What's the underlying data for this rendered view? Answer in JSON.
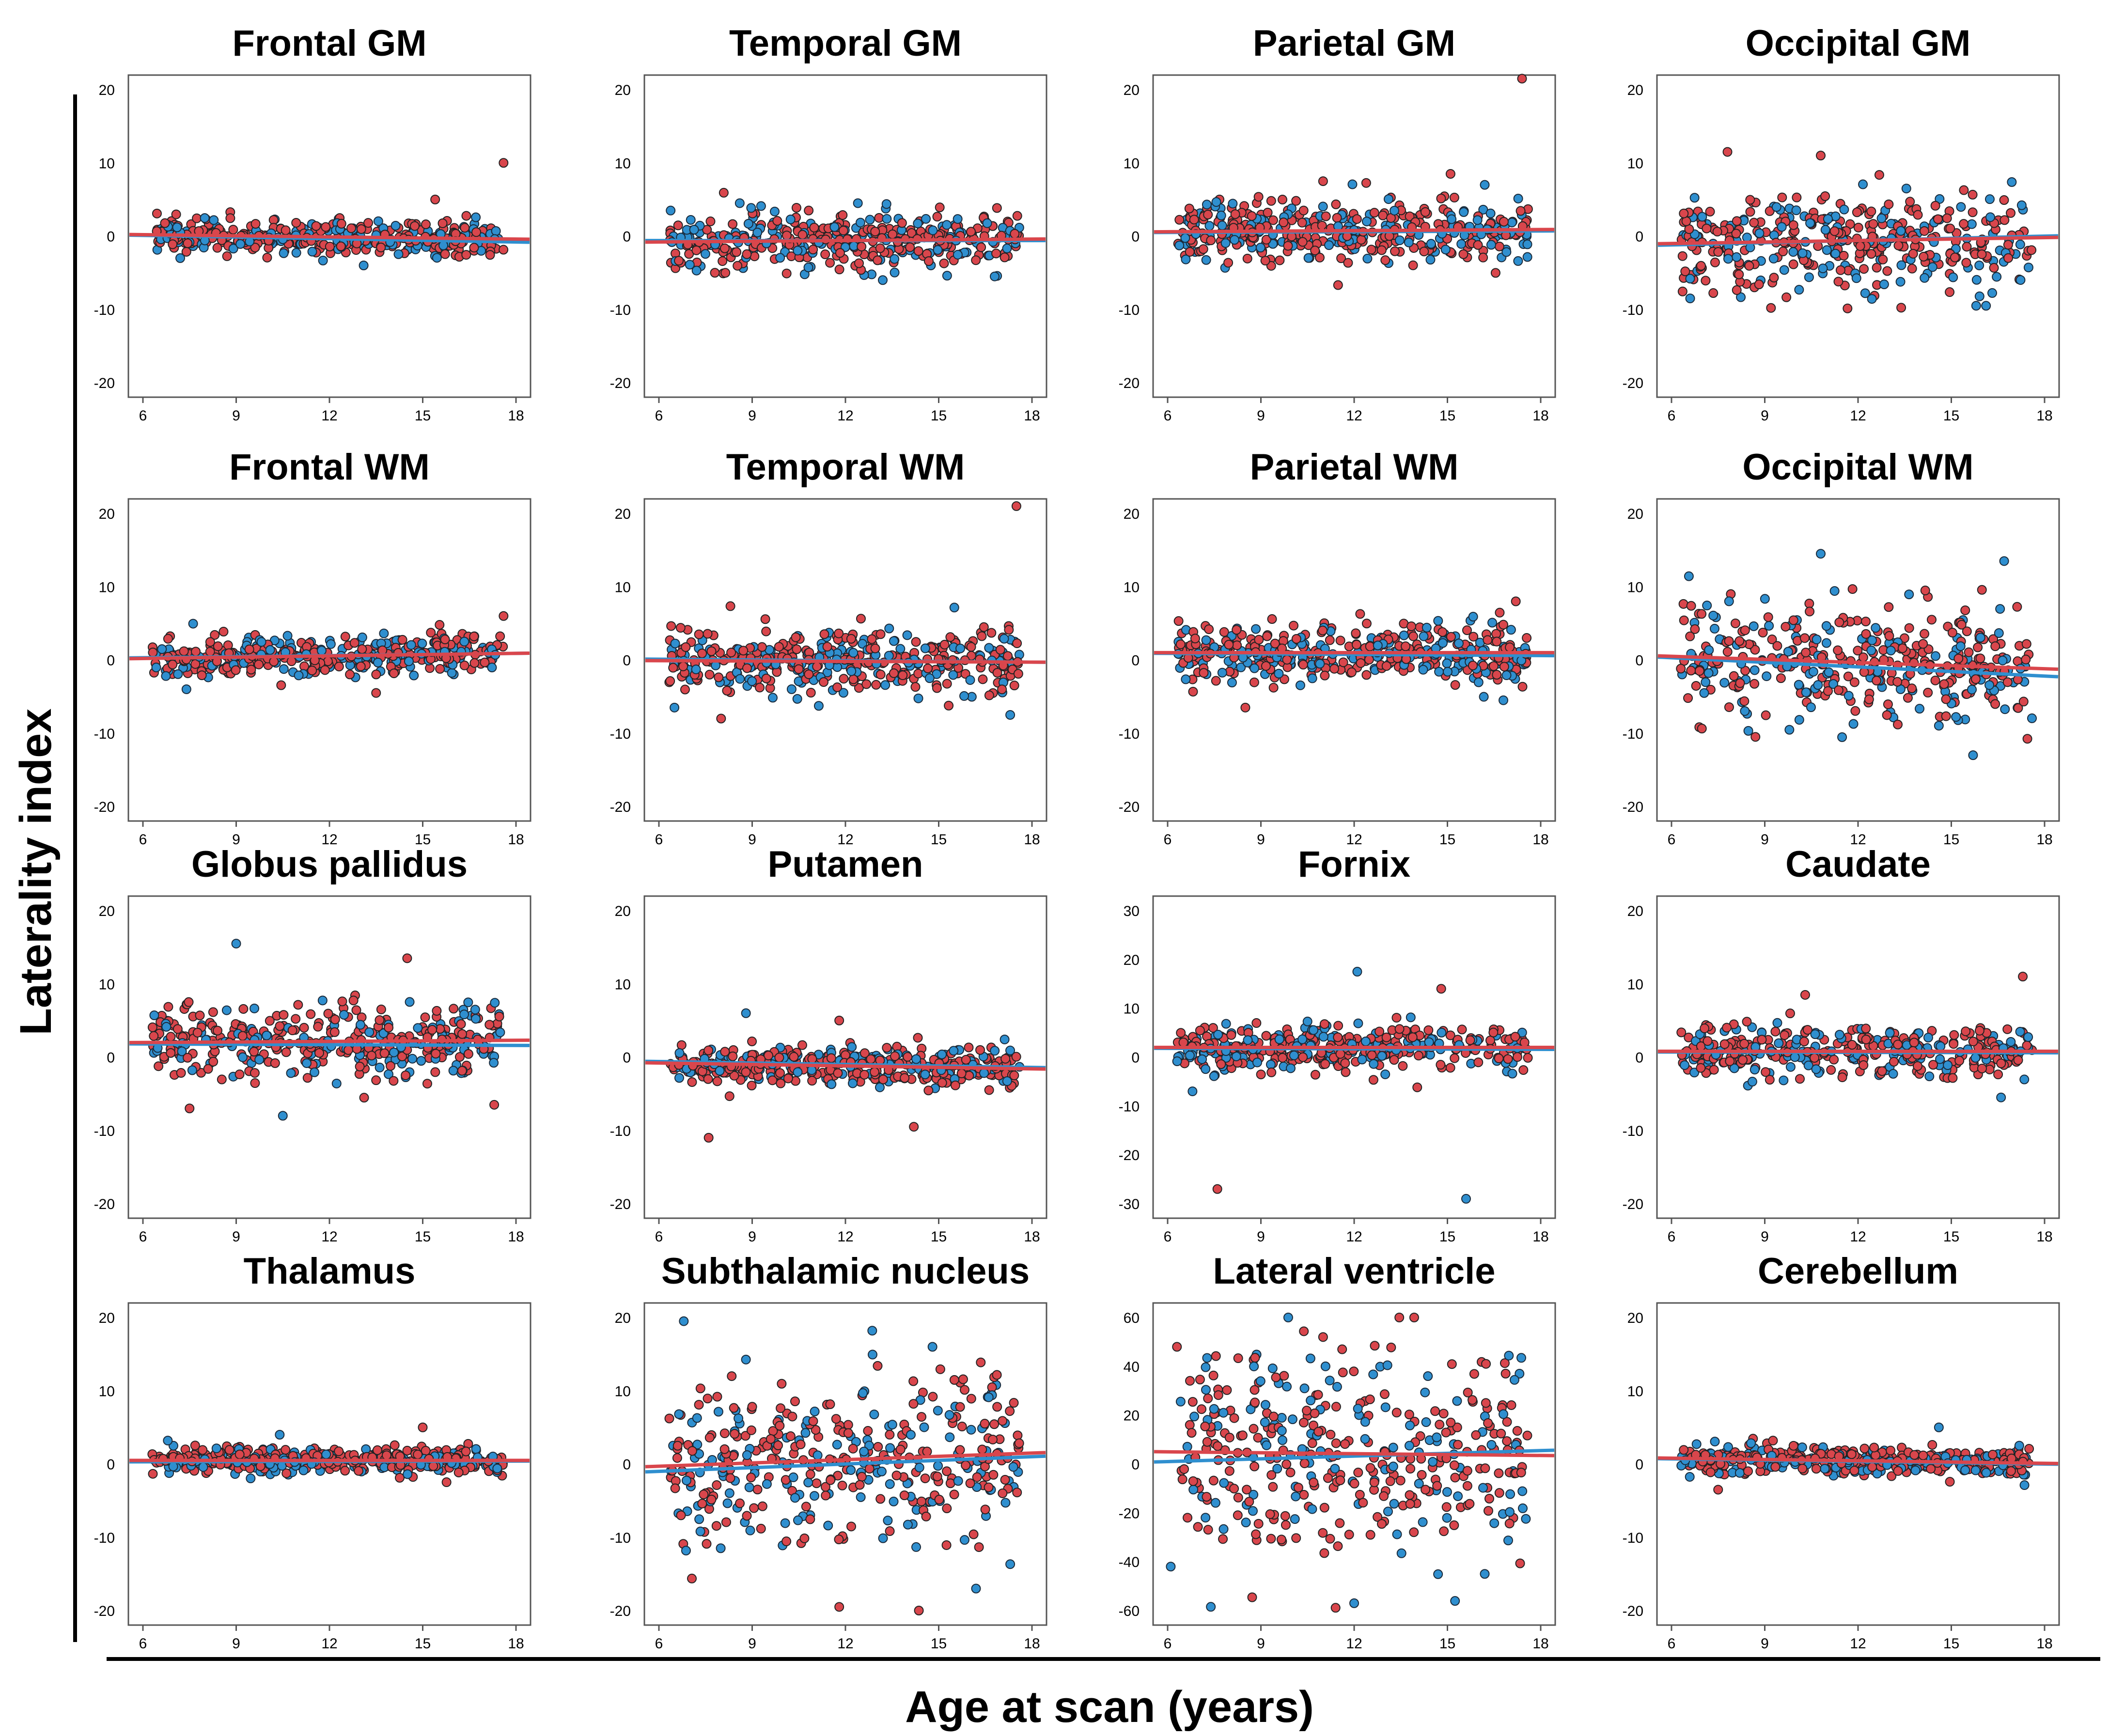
{
  "figure": {
    "ylabel": "Laterality index",
    "xlabel": "Age at scan (years)",
    "colors": {
      "series_a": "#d9464c",
      "series_b": "#2f8fcf",
      "frame": "#444444"
    }
  },
  "chart_data": [
    {
      "type": "scatter",
      "title": "Frontal GM",
      "ylim": [
        -20,
        20
      ],
      "yticks": [
        -20,
        -10,
        0,
        10,
        20
      ],
      "xlim": [
        6,
        18
      ],
      "xticks": [
        6,
        9,
        12,
        15,
        18
      ],
      "spread": 1.2,
      "red_fit": [
        0.2,
        -0.4
      ],
      "blue_fit": [
        0.1,
        -0.8
      ],
      "outliers": [
        [
          17.6,
          10,
          "r"
        ],
        [
          15.4,
          5,
          "r"
        ],
        [
          13.1,
          -4,
          "b"
        ],
        [
          7.2,
          -3,
          "b"
        ]
      ]
    },
    {
      "type": "scatter",
      "title": "Temporal GM",
      "ylim": [
        -20,
        20
      ],
      "yticks": [
        -20,
        -10,
        0,
        10,
        20
      ],
      "xlim": [
        6,
        18
      ],
      "xticks": [
        6,
        9,
        12,
        15,
        18
      ],
      "spread": 2.0,
      "red_fit": [
        -0.8,
        -0.4
      ],
      "blue_fit": [
        -0.6,
        -0.6
      ],
      "outliers": [
        [
          12.4,
          4.5,
          "b"
        ],
        [
          8.6,
          4.5,
          "b"
        ],
        [
          13.2,
          -6,
          "b"
        ],
        [
          16.8,
          -5.5,
          "b"
        ],
        [
          7.8,
          -5,
          "r"
        ]
      ]
    },
    {
      "type": "scatter",
      "title": "Parietal GM",
      "ylim": [
        -20,
        20
      ],
      "yticks": [
        -20,
        -10,
        0,
        10,
        20
      ],
      "xlim": [
        6,
        18
      ],
      "xticks": [
        6,
        9,
        12,
        15,
        18
      ],
      "spread": 2.2,
      "red_fit": [
        0.6,
        0.9
      ],
      "blue_fit": [
        0.5,
        0.7
      ],
      "outliers": [
        [
          17.4,
          21.5,
          "r"
        ],
        [
          15.1,
          8.5,
          "r"
        ],
        [
          16.2,
          7,
          "b"
        ],
        [
          11,
          7.5,
          "r"
        ]
      ]
    },
    {
      "type": "scatter",
      "title": "Occipital GM",
      "ylim": [
        -20,
        20
      ],
      "yticks": [
        -20,
        -10,
        0,
        10,
        20
      ],
      "xlim": [
        6,
        18
      ],
      "xticks": [
        6,
        9,
        12,
        15,
        18
      ],
      "spread": 3.5,
      "red_fit": [
        -1.0,
        -0.2
      ],
      "blue_fit": [
        -1.2,
        0.0
      ],
      "outliers": [
        [
          10.8,
          11,
          "r"
        ],
        [
          7.8,
          11.5,
          "r"
        ],
        [
          6.6,
          -8.5,
          "b"
        ],
        [
          15.8,
          -9.5,
          "b"
        ],
        [
          9.2,
          -9.8,
          "r"
        ]
      ]
    },
    {
      "type": "scatter",
      "title": "Frontal WM",
      "ylim": [
        -20,
        20
      ],
      "yticks": [
        -20,
        -10,
        0,
        10,
        20
      ],
      "xlim": [
        6,
        18
      ],
      "xticks": [
        6,
        9,
        12,
        15,
        18
      ],
      "spread": 1.4,
      "red_fit": [
        0.2,
        0.9
      ],
      "blue_fit": [
        0.3,
        0.9
      ],
      "outliers": [
        [
          17.6,
          6,
          "r"
        ],
        [
          13.5,
          -4.5,
          "r"
        ],
        [
          7.4,
          -4,
          "b"
        ]
      ]
    },
    {
      "type": "scatter",
      "title": "Temporal WM",
      "ylim": [
        -20,
        20
      ],
      "yticks": [
        -20,
        -10,
        0,
        10,
        20
      ],
      "xlim": [
        6,
        18
      ],
      "xticks": [
        6,
        9,
        12,
        15,
        18
      ],
      "spread": 2.2,
      "red_fit": [
        -0.1,
        -0.3
      ],
      "blue_fit": [
        0.1,
        -0.3
      ],
      "outliers": [
        [
          17.5,
          21,
          "r"
        ],
        [
          8,
          -8,
          "r"
        ],
        [
          6.5,
          -6.5,
          "b"
        ],
        [
          17.3,
          -7.5,
          "b"
        ]
      ]
    },
    {
      "type": "scatter",
      "title": "Parietal WM",
      "ylim": [
        -20,
        20
      ],
      "yticks": [
        -20,
        -10,
        0,
        10,
        20
      ],
      "xlim": [
        6,
        18
      ],
      "xticks": [
        6,
        9,
        12,
        15,
        18
      ],
      "spread": 2.0,
      "red_fit": [
        1.0,
        1.0
      ],
      "blue_fit": [
        0.9,
        0.6
      ],
      "outliers": [
        [
          17.2,
          8,
          "r"
        ],
        [
          8.5,
          -6.5,
          "r"
        ],
        [
          16.8,
          -5.5,
          "b"
        ]
      ]
    },
    {
      "type": "scatter",
      "title": "Occipital WM",
      "ylim": [
        -20,
        20
      ],
      "yticks": [
        -20,
        -10,
        0,
        10,
        20
      ],
      "xlim": [
        6,
        18
      ],
      "xticks": [
        6,
        9,
        12,
        15,
        18
      ],
      "spread": 3.8,
      "red_fit": [
        0.5,
        -1.2
      ],
      "blue_fit": [
        0.3,
        -2.2
      ],
      "outliers": [
        [
          10.8,
          14.5,
          "b"
        ],
        [
          16.7,
          13.5,
          "b"
        ],
        [
          15.7,
          -13,
          "b"
        ],
        [
          8.7,
          -10.5,
          "r"
        ]
      ]
    },
    {
      "type": "scatter",
      "title": "Globus pallidus",
      "ylim": [
        -20,
        20
      ],
      "yticks": [
        -20,
        -10,
        0,
        10,
        20
      ],
      "xlim": [
        6,
        18
      ],
      "xticks": [
        6,
        9,
        12,
        15,
        18
      ],
      "spread": 2.6,
      "red_fit": [
        2.0,
        2.3
      ],
      "blue_fit": [
        1.8,
        1.6
      ],
      "outliers": [
        [
          9,
          15.5,
          "b"
        ],
        [
          14.5,
          13.5,
          "r"
        ],
        [
          10.5,
          -8,
          "b"
        ],
        [
          7.5,
          -7,
          "r"
        ],
        [
          17.3,
          -6.5,
          "r"
        ]
      ]
    },
    {
      "type": "scatter",
      "title": "Putamen",
      "ylim": [
        -20,
        20
      ],
      "yticks": [
        -20,
        -10,
        0,
        10,
        20
      ],
      "xlim": [
        6,
        18
      ],
      "xticks": [
        6,
        9,
        12,
        15,
        18
      ],
      "spread": 1.3,
      "red_fit": [
        -0.8,
        -1.6
      ],
      "blue_fit": [
        -0.6,
        -1.4
      ],
      "outliers": [
        [
          8.8,
          6,
          "b"
        ],
        [
          7.6,
          -11,
          "r"
        ],
        [
          14.2,
          -9.5,
          "r"
        ],
        [
          11.8,
          5,
          "r"
        ]
      ]
    },
    {
      "type": "scatter",
      "title": "Fornix",
      "ylim": [
        -30,
        30
      ],
      "yticks": [
        -30,
        -20,
        -10,
        0,
        10,
        20,
        30
      ],
      "xlim": [
        6,
        18
      ],
      "xticks": [
        6,
        9,
        12,
        15,
        18
      ],
      "spread": 2.2,
      "red_fit": [
        2.0,
        2.0
      ],
      "blue_fit": [
        1.8,
        1.6
      ],
      "outliers": [
        [
          12.1,
          17.5,
          "b"
        ],
        [
          14.8,
          14,
          "r"
        ],
        [
          7.6,
          -27,
          "r"
        ],
        [
          15.6,
          -29,
          "b"
        ],
        [
          6.8,
          -7,
          "b"
        ]
      ]
    },
    {
      "type": "scatter",
      "title": "Caudate",
      "ylim": [
        -20,
        20
      ],
      "yticks": [
        -20,
        -10,
        0,
        10,
        20
      ],
      "xlim": [
        6,
        18
      ],
      "xticks": [
        6,
        9,
        12,
        15,
        18
      ],
      "spread": 1.8,
      "red_fit": [
        0.8,
        0.8
      ],
      "blue_fit": [
        0.7,
        0.6
      ],
      "outliers": [
        [
          17.3,
          11,
          "r"
        ],
        [
          10.3,
          8.5,
          "r"
        ],
        [
          16.6,
          -5.5,
          "b"
        ]
      ]
    },
    {
      "type": "scatter",
      "title": "Thalamus",
      "ylim": [
        -20,
        20
      ],
      "yticks": [
        -20,
        -10,
        0,
        10,
        20
      ],
      "xlim": [
        6,
        18
      ],
      "xticks": [
        6,
        9,
        12,
        15,
        18
      ],
      "spread": 0.9,
      "red_fit": [
        0.5,
        0.5
      ],
      "blue_fit": [
        0.3,
        0.4
      ],
      "outliers": [
        [
          15,
          5,
          "r"
        ],
        [
          10.4,
          4,
          "b"
        ],
        [
          6.8,
          3.2,
          "b"
        ]
      ]
    },
    {
      "type": "scatter",
      "title": "Subthalamic nucleus",
      "ylim": [
        -20,
        20
      ],
      "yticks": [
        -20,
        -10,
        0,
        10,
        20
      ],
      "xlim": [
        6,
        18
      ],
      "xticks": [
        6,
        9,
        12,
        15,
        18
      ],
      "spread": 6.0,
      "red_fit": [
        -0.3,
        1.5
      ],
      "blue_fit": [
        -1.0,
        1.0
      ],
      "outliers": [
        [
          6.8,
          19.5,
          "b"
        ],
        [
          14.8,
          16,
          "b"
        ],
        [
          11.8,
          -19.5,
          "r"
        ],
        [
          16.2,
          -17,
          "b"
        ]
      ]
    },
    {
      "type": "scatter",
      "title": "Lateral ventricle",
      "ylim": [
        -60,
        60
      ],
      "yticks": [
        -60,
        -40,
        -20,
        0,
        20,
        40,
        60
      ],
      "xlim": [
        6,
        18
      ],
      "xticks": [
        6,
        9,
        12,
        15,
        18
      ],
      "spread": 21.0,
      "red_fit": [
        5.0,
        3.5
      ],
      "blue_fit": [
        1.0,
        5.5
      ],
      "outliers": [
        [
          6.3,
          48,
          "r"
        ],
        [
          11,
          52,
          "r"
        ],
        [
          12,
          -57,
          "b"
        ],
        [
          16.2,
          -45,
          "b"
        ],
        [
          6.1,
          -42,
          "b"
        ]
      ]
    },
    {
      "type": "scatter",
      "title": "Cerebellum",
      "ylim": [
        -20,
        20
      ],
      "yticks": [
        -20,
        -10,
        0,
        10,
        20
      ],
      "xlim": [
        6,
        18
      ],
      "xticks": [
        6,
        9,
        12,
        15,
        18
      ],
      "spread": 1.0,
      "red_fit": [
        0.8,
        0.1
      ],
      "blue_fit": [
        0.7,
        0.0
      ],
      "outliers": [
        [
          14.6,
          5,
          "b"
        ],
        [
          7.5,
          -3.5,
          "r"
        ]
      ]
    }
  ]
}
